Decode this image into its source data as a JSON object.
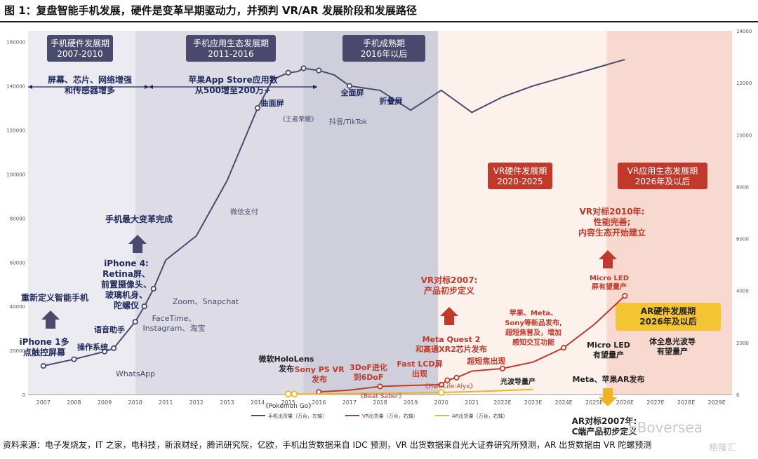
{
  "title": "图 1：复盘智能手机发展，硬件是变革早期驱动力，并预判 VR/AR 发展阶段和发展路径",
  "source": "资料来源：电子发烧友，IT 之家，电科技，新浪财经，腾讯研究院，亿欧，手机出货数据来自 IDC 预测，VR 出货数据来自光大证券研究所预测，AR 出货数据由 VR 陀螺预测",
  "watermark": "EBoversea",
  "watermark2": "格隆汇",
  "chart_data": {
    "type": "line",
    "title": "",
    "categories": [
      "2007",
      "2008",
      "2009",
      "2010",
      "2011",
      "2012",
      "2013",
      "2014",
      "2015",
      "2016",
      "2017",
      "2018",
      "2019",
      "2020",
      "2021",
      "2022E",
      "2023E",
      "2024E",
      "2025E",
      "2026E",
      "2027E",
      "2028E",
      "2029E"
    ],
    "y_left_ticks": [
      "0",
      "20000",
      "40000",
      "60000",
      "80000",
      "100000",
      "120000",
      "140000",
      "160000"
    ],
    "y_right_ticks": [
      "0",
      "2000",
      "4000",
      "6000",
      "8000",
      "10000",
      "12000",
      "14000"
    ],
    "ylim_left": [
      0,
      165000
    ],
    "ylim_right": [
      0,
      14000
    ],
    "legend_position": "bottom",
    "series": [
      {
        "name": "手机出货量（万台，左轴）",
        "axis": "left",
        "color": "#4a4a6e",
        "x": [
          0.0,
          1.0,
          2.0,
          2.3,
          3.0,
          3.3,
          3.6,
          4.0,
          5.0,
          6.0,
          7.0,
          7.5,
          8.0,
          8.3,
          8.5,
          9.0,
          9.5,
          10.0,
          11.0,
          12.0,
          13.0,
          14.0,
          15.0,
          16.0,
          17.0,
          18.0,
          19.0
        ],
        "values": [
          13000,
          16000,
          19500,
          21000,
          33000,
          40000,
          48000,
          61000,
          72000,
          97000,
          130000,
          143000,
          146000,
          146500,
          148000,
          147000,
          145000,
          140000,
          138000,
          129000,
          138000,
          128000,
          135000,
          140000,
          144000,
          148000,
          152000
        ],
        "markers": [
          0,
          1,
          2,
          3,
          4,
          5,
          6,
          10,
          12,
          14,
          15,
          17
        ]
      },
      {
        "name": "VR出货量（万台，右轴）",
        "axis": "right",
        "color": "#c0392b",
        "x": [
          9.0,
          10.0,
          11.0,
          12.0,
          13.0,
          13.2,
          13.5,
          14.0,
          15.0,
          16.0,
          17.0,
          18.0,
          19.0
        ],
        "values": [
          100,
          170,
          310,
          350,
          380,
          550,
          650,
          900,
          1000,
          1250,
          1800,
          2700,
          3800
        ],
        "markers": [
          0,
          2,
          4,
          5,
          6,
          8,
          10,
          12
        ]
      },
      {
        "name": "AR出货量（万台，右轴）",
        "axis": "right",
        "color": "#f0b323",
        "x": [
          8.0,
          8.2,
          9.0,
          10.0,
          11.0,
          12.0,
          13.0,
          14.0,
          15.0,
          16.0
        ],
        "values": [
          20,
          20,
          20,
          40,
          50,
          60,
          80,
          110,
          150,
          200
        ],
        "markers": [
          0,
          1,
          6
        ]
      }
    ],
    "periods": [
      {
        "label": "手机硬件发展期\n2007-2010",
        "from": 0.0,
        "to": 3.5,
        "color": "#ecebf2",
        "box_color": "#4a4a6e",
        "text_color": "#ffffff"
      },
      {
        "label": "手机应用生态发展期\n2011-2016",
        "from": 3.5,
        "to": 9.0,
        "color": "#dddce6",
        "box_color": "#4a4a6e",
        "text_color": "#ffffff"
      },
      {
        "label": "手机成熟期\n2016年以后",
        "from": 9.0,
        "to": 13.4,
        "color": "#cfcfdc",
        "box_color": "#4a4a6e",
        "text_color": "#ffffff"
      },
      {
        "label": "VR硬件发展期\n2020-2025",
        "from": 13.4,
        "to": 18.9,
        "color": "#fdf1ec",
        "box_color": "#c0392b",
        "text_color": "#ffffff"
      },
      {
        "label": "VR应用生态发展期\n2026年及以后",
        "from": 18.9,
        "to": 23.0,
        "color": "#f8d9cf",
        "box_color": "#c0392b",
        "text_color": "#ffffff"
      }
    ],
    "annotations": [
      {
        "text": "屏幕、芯片、网络增强\n和传感器增多",
        "color": "#1f2a5c"
      },
      {
        "text": "苹果App Store应用数\n从500增至200万+",
        "color": "#1f2a5c"
      },
      {
        "text": "曲面屏",
        "color": "#1f2a5c"
      },
      {
        "text": "全面屏",
        "color": "#1f2a5c"
      },
      {
        "text": "折叠屏",
        "color": "#1f2a5c"
      },
      {
        "text": "《王者荣耀》",
        "color": "#4a4a6e"
      },
      {
        "text": "抖音/TikTok",
        "color": "#4a4a6e"
      },
      {
        "text": "微信支付",
        "color": "#4a4a6e"
      },
      {
        "text": "手机最大变革完成",
        "color": "#1f2a5c"
      },
      {
        "text": "iPhone 4:\nRetina屏、\n前置摄像头、\n玻璃机身、\n陀螺仪",
        "color": "#1f2a5c"
      },
      {
        "text": "Zoom、Snapchat",
        "color": "#4a4a6e"
      },
      {
        "text": "FaceTime、\nInstagram、淘宝",
        "color": "#4a4a6e"
      },
      {
        "text": "重新定义智能手机",
        "color": "#1f2a5c"
      },
      {
        "text": "语音助手",
        "color": "#1f2a5c"
      },
      {
        "text": "iPhone 1多\n点触控屏幕",
        "color": "#1f2a5c"
      },
      {
        "text": "操作系统",
        "color": "#1f2a5c"
      },
      {
        "text": "WhatsApp",
        "color": "#4a4a6e"
      },
      {
        "text": "微软HoloLens\n发布",
        "color": "#222222"
      },
      {
        "text": "Sony PS VR\n发布",
        "color": "#c0392b"
      },
      {
        "text": "3DoF进化\n到6DoF",
        "color": "#c0392b"
      },
      {
        "text": "Fast LCD屏\n出现",
        "color": "#c0392b"
      },
      {
        "text": "《Pokemon Go》",
        "color": "#333333"
      },
      {
        "text": "《Beat Saber》",
        "color": "#c0392b"
      },
      {
        "text": "《Half-Life:Alyx》",
        "color": "#c0392b"
      },
      {
        "text": "VR对标2007:\n产品初步定义",
        "color": "#c0392b"
      },
      {
        "text": "Meta Quest 2\n和高通XR2芯片发布",
        "color": "#c0392b"
      },
      {
        "text": "超短焦出现",
        "color": "#c0392b"
      },
      {
        "text": "光波导量产",
        "color": "#222222"
      },
      {
        "text": "苹果、Meta、\nSony等新品发布,\n超短焦普及，增加\n感知交互功能",
        "color": "#c0392b"
      },
      {
        "text": "VR对标2010年:\n性能完善;\n内容生态开始建立",
        "color": "#c0392b"
      },
      {
        "text": "Micro LED\n屏有望量产",
        "color": "#c0392b"
      },
      {
        "text": "AR硬件发展期\n2026年及以后",
        "color": "#222222"
      },
      {
        "text": "Micro LED\n有望量产",
        "color": "#222222"
      },
      {
        "text": "体全息光波导\n有望量产",
        "color": "#222222"
      },
      {
        "text": "Meta、苹果AR发布",
        "color": "#222222"
      },
      {
        "text": "AR对标2007年:\nC端产品初步定义",
        "color": "#222222"
      }
    ]
  }
}
